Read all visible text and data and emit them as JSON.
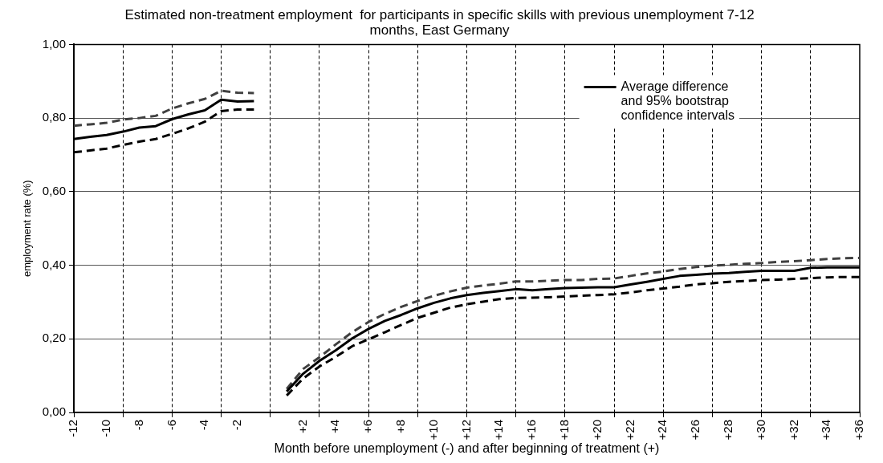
{
  "chart_data": {
    "type": "line",
    "title": "Estimated non-treatment employment  for participants in specific skills with previous unemployment 7-12 months, East Germany",
    "xlabel": "Month before unemployment (-) and after beginning of treatment (+)",
    "ylabel": "employment rate (%)",
    "categories": [
      "-12",
      null,
      "-10",
      null,
      "-8",
      null,
      "-6",
      null,
      "-4",
      null,
      "-2",
      null,
      null,
      null,
      "+2",
      null,
      "+4",
      null,
      "+6",
      null,
      "+8",
      null,
      "+10",
      null,
      "+12",
      null,
      "+14",
      null,
      "+16",
      null,
      "+18",
      null,
      "+20",
      null,
      "+22",
      null,
      "+24",
      null,
      "+26",
      null,
      "+28",
      null,
      "+30",
      null,
      "+32",
      null,
      "+34",
      null,
      "+36"
    ],
    "series": [
      {
        "name": "Average difference and 95% bootstrap confidence intervals",
        "color": "#000000",
        "line_style": "solid",
        "values": [
          0.743,
          0.749,
          0.754,
          0.763,
          0.774,
          0.778,
          0.797,
          0.81,
          0.821,
          0.85,
          0.845,
          0.846,
          null,
          0.057,
          0.105,
          0.14,
          0.169,
          0.201,
          0.227,
          0.249,
          0.265,
          0.283,
          0.298,
          0.31,
          0.319,
          0.325,
          0.33,
          0.335,
          0.332,
          0.335,
          0.338,
          0.339,
          0.34,
          0.34,
          0.348,
          0.355,
          0.363,
          0.371,
          0.374,
          0.377,
          0.379,
          0.382,
          0.385,
          0.385,
          0.385,
          0.393,
          0.394,
          0.394,
          0.394
        ]
      },
      {
        "color": "#404040",
        "line_style": "dashed",
        "values": [
          0.779,
          0.783,
          0.787,
          0.796,
          0.8,
          0.806,
          0.826,
          0.84,
          0.852,
          0.874,
          0.869,
          0.868,
          null,
          0.064,
          0.118,
          0.15,
          0.185,
          0.218,
          0.246,
          0.268,
          0.287,
          0.303,
          0.317,
          0.329,
          0.339,
          0.345,
          0.35,
          0.356,
          0.356,
          0.358,
          0.36,
          0.36,
          0.363,
          0.364,
          0.371,
          0.378,
          0.383,
          0.39,
          0.395,
          0.399,
          0.401,
          0.404,
          0.406,
          0.409,
          0.411,
          0.414,
          0.417,
          0.419,
          0.42
        ]
      },
      {
        "color": "#000000",
        "line_style": "dashed",
        "values": [
          0.707,
          0.712,
          0.717,
          0.727,
          0.736,
          0.743,
          0.757,
          0.772,
          0.79,
          0.819,
          0.823,
          0.823,
          null,
          0.046,
          0.092,
          0.125,
          0.151,
          0.18,
          0.199,
          0.218,
          0.238,
          0.257,
          0.271,
          0.285,
          0.294,
          0.301,
          0.308,
          0.311,
          0.312,
          0.313,
          0.315,
          0.317,
          0.319,
          0.321,
          0.326,
          0.332,
          0.337,
          0.342,
          0.348,
          0.351,
          0.355,
          0.357,
          0.36,
          0.361,
          0.363,
          0.365,
          0.367,
          0.368,
          0.368
        ]
      }
    ],
    "ylim": [
      0,
      1
    ],
    "yticks": [
      {
        "value": 0,
        "label": "0,00"
      },
      {
        "value": 0.2,
        "label": "0,20"
      },
      {
        "value": 0.4,
        "label": "0,40"
      },
      {
        "value": 0.6,
        "label": "0,60"
      },
      {
        "value": 0.8,
        "label": "0,80"
      },
      {
        "value": 1,
        "label": "1,00"
      }
    ],
    "grid": true,
    "legend": "top right",
    "marker": "none"
  }
}
